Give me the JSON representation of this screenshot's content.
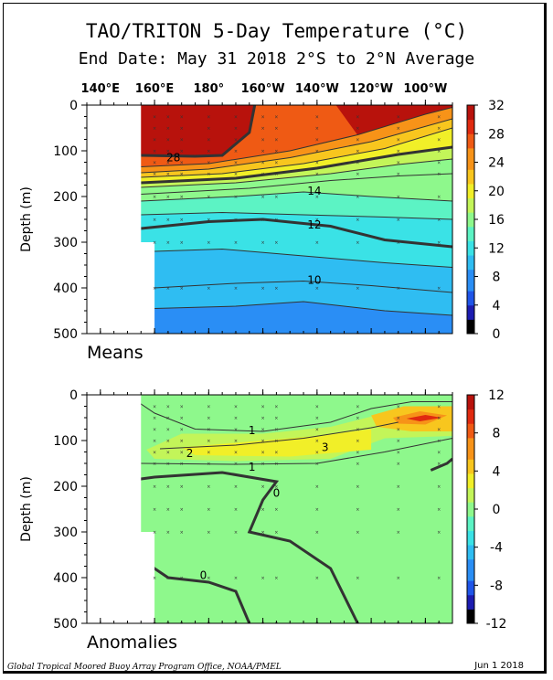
{
  "title": "TAO/TRITON 5-Day Temperature (°C)",
  "subtitle": "End Date: May 31 2018   2°S to 2°N Average",
  "footer": {
    "left": "Global Tropical Moored Buoy Array Program Office, NOAA/PMEL",
    "right": "Jun  1 2018"
  },
  "colors": {
    "scale": [
      "#000000",
      "#1c1cb0",
      "#1f55e8",
      "#2a8ef5",
      "#2fbdf2",
      "#3ae2e6",
      "#5cf3c4",
      "#8ef88c",
      "#c3f559",
      "#f1ef28",
      "#f8c61e",
      "#f79318",
      "#ef5a14",
      "#e02a10",
      "#b8120c"
    ],
    "contour": "#333333",
    "land": "#ffffff"
  },
  "chart_data": [
    {
      "type": "heatmap",
      "panel_label": "Means",
      "x_ticks": [
        "140°E",
        "160°E",
        "180°",
        "160°W",
        "140°W",
        "120°W",
        "100°W"
      ],
      "x_tick_values": [
        140,
        160,
        180,
        200,
        220,
        240,
        260
      ],
      "xlim": [
        135,
        270
      ],
      "ylabel": "Depth (m)",
      "y_ticks": [
        0,
        100,
        200,
        300,
        400,
        500
      ],
      "ylim": [
        0,
        500
      ],
      "colorbar": {
        "ticks": [
          0,
          4,
          8,
          12,
          16,
          20,
          24,
          28,
          32
        ],
        "range": [
          0,
          32
        ]
      },
      "contour_labels": [
        {
          "text": "28",
          "lon": 167,
          "depth": 115
        },
        {
          "text": "14",
          "lon": 219,
          "depth": 188
        },
        {
          "text": "12",
          "lon": 219,
          "depth": 262
        },
        {
          "text": "10",
          "lon": 219,
          "depth": 383
        }
      ],
      "isotherms": [
        {
          "value": 28,
          "bold": true,
          "points": [
            [
              155,
              110
            ],
            [
              175,
              112
            ],
            [
              185,
              110
            ],
            [
              195,
              60
            ],
            [
              197,
              0
            ]
          ]
        },
        {
          "value": 26,
          "bold": false,
          "points": [
            [
              155,
              135
            ],
            [
              180,
              128
            ],
            [
              210,
              100
            ],
            [
              235,
              65
            ],
            [
              260,
              20
            ],
            [
              270,
              5
            ]
          ]
        },
        {
          "value": 24,
          "bold": false,
          "points": [
            [
              155,
              148
            ],
            [
              180,
              140
            ],
            [
              210,
              115
            ],
            [
              240,
              80
            ],
            [
              270,
              30
            ]
          ]
        },
        {
          "value": 22,
          "bold": false,
          "points": [
            [
              155,
              158
            ],
            [
              185,
              150
            ],
            [
              215,
              128
            ],
            [
              245,
              95
            ],
            [
              270,
              50
            ]
          ]
        },
        {
          "value": 20,
          "bold": true,
          "points": [
            [
              155,
              170
            ],
            [
              190,
              160
            ],
            [
              220,
              138
            ],
            [
              250,
              108
            ],
            [
              270,
              92
            ]
          ]
        },
        {
          "value": 18,
          "bold": false,
          "points": [
            [
              155,
              180
            ],
            [
              190,
              170
            ],
            [
              225,
              150
            ],
            [
              250,
              130
            ],
            [
              270,
              118
            ]
          ]
        },
        {
          "value": 16,
          "bold": false,
          "points": [
            [
              155,
              195
            ],
            [
              195,
              182
            ],
            [
              225,
              165
            ],
            [
              250,
              155
            ],
            [
              270,
              150
            ]
          ]
        },
        {
          "value": 14,
          "bold": false,
          "points": [
            [
              155,
              210
            ],
            [
              190,
              200
            ],
            [
              215,
              190
            ],
            [
              240,
              200
            ],
            [
              270,
              210
            ]
          ]
        },
        {
          "value": 13,
          "bold": false,
          "points": [
            [
              155,
              240
            ],
            [
              185,
              235
            ],
            [
              215,
              240
            ],
            [
              245,
              245
            ],
            [
              270,
              250
            ]
          ]
        },
        {
          "value": 12,
          "bold": true,
          "points": [
            [
              155,
              270
            ],
            [
              180,
              255
            ],
            [
              200,
              250
            ],
            [
              225,
              265
            ],
            [
              245,
              295
            ],
            [
              270,
              310
            ]
          ]
        },
        {
          "value": 11,
          "bold": false,
          "points": [
            [
              160,
              320
            ],
            [
              185,
              315
            ],
            [
              215,
              330
            ],
            [
              245,
              345
            ],
            [
              270,
              355
            ]
          ]
        },
        {
          "value": 10,
          "bold": false,
          "points": [
            [
              160,
              400
            ],
            [
              190,
              390
            ],
            [
              215,
              385
            ],
            [
              240,
              395
            ],
            [
              270,
              410
            ]
          ]
        },
        {
          "value": 9,
          "bold": false,
          "points": [
            [
              160,
              445
            ],
            [
              190,
              440
            ],
            [
              215,
              430
            ],
            [
              245,
              450
            ],
            [
              270,
              460
            ]
          ]
        }
      ]
    },
    {
      "type": "heatmap",
      "panel_label": "Anomalies",
      "x_ticks": [
        "140°E",
        "160°E",
        "180°",
        "160°W",
        "140°W",
        "120°W",
        "100°W"
      ],
      "x_tick_values": [
        140,
        160,
        180,
        200,
        220,
        240,
        260
      ],
      "xlim": [
        135,
        270
      ],
      "ylabel": "Depth (m)",
      "y_ticks": [
        0,
        100,
        200,
        300,
        400,
        500
      ],
      "ylim": [
        0,
        500
      ],
      "colorbar": {
        "ticks": [
          -12,
          -8,
          -4,
          0,
          4,
          8,
          12
        ],
        "range": [
          -12,
          12
        ]
      },
      "contour_labels": [
        {
          "text": "1",
          "lon": 196,
          "depth": 78
        },
        {
          "text": "2",
          "lon": 173,
          "depth": 128
        },
        {
          "text": "3",
          "lon": 223,
          "depth": 115
        },
        {
          "text": "1",
          "lon": 196,
          "depth": 158
        },
        {
          "text": "0",
          "lon": 205,
          "depth": 215
        },
        {
          "text": "0",
          "lon": 178,
          "depth": 395
        }
      ],
      "anomaly_blobs": [
        {
          "value": 1.5,
          "points": [
            [
              157,
              120
            ],
            [
              170,
              85
            ],
            [
              200,
              85
            ],
            [
              225,
              70
            ],
            [
              245,
              40
            ],
            [
              270,
              25
            ],
            [
              270,
              90
            ],
            [
              245,
              95
            ],
            [
              225,
              140
            ],
            [
              190,
              145
            ],
            [
              160,
              140
            ]
          ]
        },
        {
          "value": 2.5,
          "points": [
            [
              170,
              115
            ],
            [
              200,
              100
            ],
            [
              220,
              90
            ],
            [
              240,
              75
            ],
            [
              240,
              120
            ],
            [
              210,
              135
            ],
            [
              175,
              132
            ]
          ]
        },
        {
          "value": 3.5,
          "points": [
            [
              212,
              108
            ],
            [
              220,
              92
            ],
            [
              232,
              98
            ],
            [
              228,
              120
            ],
            [
              214,
              120
            ]
          ]
        },
        {
          "value": 4.0,
          "points": [
            [
              240,
              45
            ],
            [
              252,
              25
            ],
            [
              270,
              25
            ],
            [
              270,
              80
            ],
            [
              255,
              80
            ],
            [
              242,
              70
            ]
          ]
        },
        {
          "value": 6.0,
          "points": [
            [
              248,
              50
            ],
            [
              258,
              36
            ],
            [
              268,
              45
            ],
            [
              260,
              65
            ],
            [
              250,
              63
            ]
          ]
        },
        {
          "value": 9.0,
          "points": [
            [
              253,
              52
            ],
            [
              260,
              44
            ],
            [
              266,
              50
            ],
            [
              258,
              58
            ]
          ]
        },
        {
          "value": -0.7,
          "points": [
            [
              160,
              215
            ],
            [
              168,
              180
            ],
            [
              215,
              185
            ],
            [
              200,
              205
            ],
            [
              190,
              250
            ],
            [
              162,
              255
            ]
          ]
        }
      ],
      "anomaly_contours": [
        {
          "value": 1,
          "bold": false,
          "points": [
            [
              150,
              0
            ],
            [
              160,
              40
            ],
            [
              175,
              75
            ],
            [
              200,
              80
            ],
            [
              225,
              60
            ],
            [
              240,
              30
            ],
            [
              255,
              15
            ],
            [
              270,
              15
            ]
          ]
        },
        {
          "value": 1,
          "bold": false,
          "points": [
            [
              155,
              150
            ],
            [
              190,
              152
            ],
            [
              220,
              150
            ],
            [
              245,
              125
            ],
            [
              270,
              95
            ]
          ]
        },
        {
          "value": 2,
          "bold": false,
          "points": [
            [
              162,
              118
            ],
            [
              190,
              110
            ],
            [
              215,
              95
            ],
            [
              240,
              72
            ],
            [
              250,
              60
            ]
          ]
        },
        {
          "value": 0,
          "bold": true,
          "points": [
            [
              135,
              200
            ],
            [
              160,
              180
            ],
            [
              185,
              170
            ],
            [
              205,
              190
            ],
            [
              200,
              230
            ],
            [
              195,
              300
            ],
            [
              210,
              320
            ],
            [
              225,
              380
            ],
            [
              235,
              500
            ]
          ]
        },
        {
          "value": 0,
          "bold": true,
          "points": [
            [
              135,
              295
            ],
            [
              145,
              305
            ],
            [
              155,
              360
            ],
            [
              165,
              400
            ],
            [
              180,
              410
            ],
            [
              190,
              430
            ],
            [
              195,
              500
            ]
          ]
        },
        {
          "value": 0,
          "bold": true,
          "points": [
            [
              262,
              165
            ],
            [
              268,
              150
            ],
            [
              270,
              140
            ]
          ]
        }
      ]
    }
  ]
}
